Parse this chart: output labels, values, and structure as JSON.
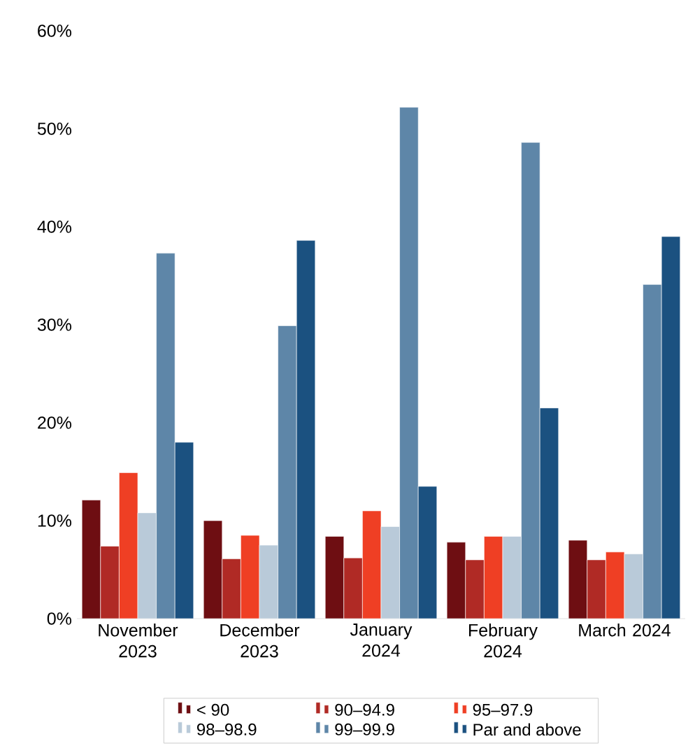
{
  "chart_data": {
    "type": "bar",
    "categories": [
      "November 2023",
      "December 2023",
      "January 2024",
      "February 2024",
      "March 2024"
    ],
    "series": [
      {
        "name": "< 90",
        "color": "#6e0e12",
        "values": [
          12.1,
          10.0,
          8.4,
          7.8,
          8.0
        ]
      },
      {
        "name": "90–94.9",
        "color": "#b02a25",
        "values": [
          7.4,
          6.1,
          6.2,
          6.0,
          6.0
        ]
      },
      {
        "name": "95–97.9",
        "color": "#ef3f24",
        "values": [
          14.9,
          8.5,
          11.0,
          8.4,
          6.8
        ]
      },
      {
        "name": "98–98.9",
        "color": "#b9cad9",
        "values": [
          10.8,
          7.5,
          9.4,
          8.4,
          6.6
        ]
      },
      {
        "name": "99–99.9",
        "color": "#5e86a8",
        "values": [
          37.3,
          29.9,
          52.2,
          48.6,
          34.1
        ]
      },
      {
        "name": "Par and above",
        "color": "#1b5180",
        "values": [
          18.0,
          38.6,
          13.5,
          21.5,
          39.0
        ]
      }
    ],
    "ylim": [
      0,
      60
    ],
    "yticks": [
      {
        "value": 0,
        "label": "0%"
      },
      {
        "value": 10,
        "label": "10%"
      },
      {
        "value": 20,
        "label": "20%"
      },
      {
        "value": 30,
        "label": "30%"
      },
      {
        "value": 40,
        "label": "40%"
      },
      {
        "value": 50,
        "label": "50%"
      },
      {
        "value": 60,
        "label": "60%"
      }
    ],
    "grid": false,
    "legend": "bottom"
  }
}
